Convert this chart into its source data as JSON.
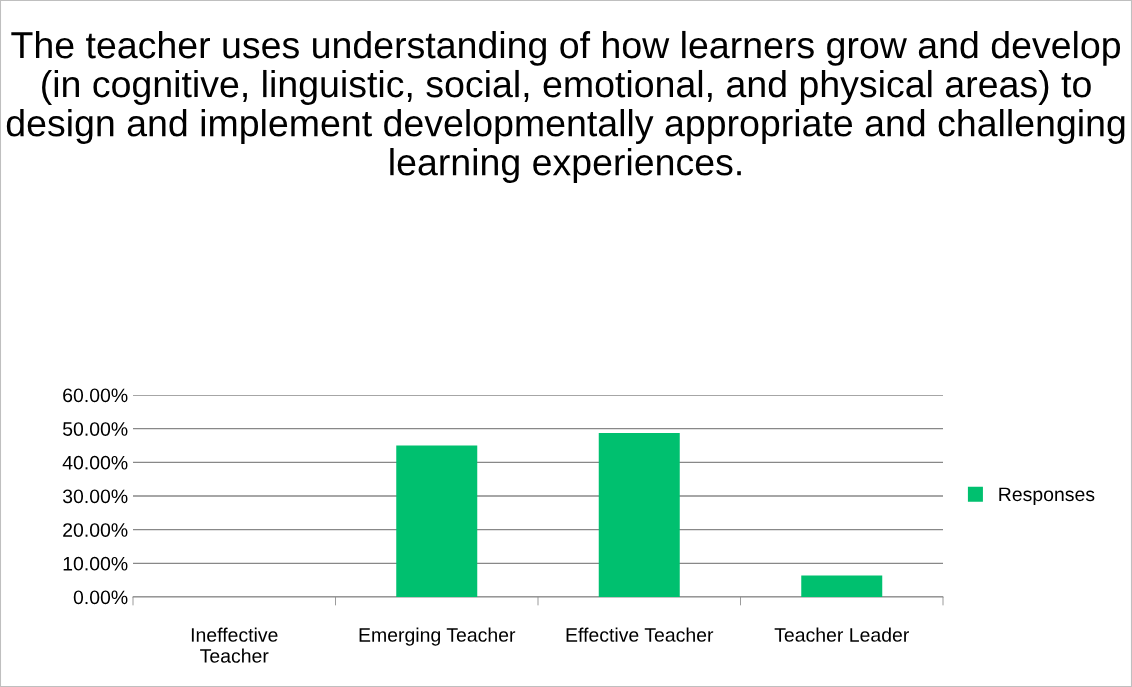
{
  "chart_data": {
    "type": "bar",
    "title": "The teacher uses understanding of how learners grow and develop (in cognitive, linguistic, social, emotional, and physical areas) to design and implement developmentally appropriate and challenging learning experiences.",
    "categories": [
      "Ineffective Teacher",
      "Emerging Teacher",
      "Effective Teacher",
      "Teacher Leader"
    ],
    "series": [
      {
        "name": "Responses",
        "color": "#00c06f",
        "values": [
          0,
          45.0,
          48.7,
          6.4
        ]
      }
    ],
    "ylim": [
      0,
      60
    ],
    "yticks": [
      {
        "value": 0,
        "label": "0.00%"
      },
      {
        "value": 10,
        "label": "10.00%"
      },
      {
        "value": 20,
        "label": "20.00%"
      },
      {
        "value": 30,
        "label": "30.00%"
      },
      {
        "value": 40,
        "label": "40.00%"
      },
      {
        "value": 50,
        "label": "50.00%"
      },
      {
        "value": 60,
        "label": "60.00%"
      }
    ],
    "grid": "y",
    "legend": "right"
  }
}
